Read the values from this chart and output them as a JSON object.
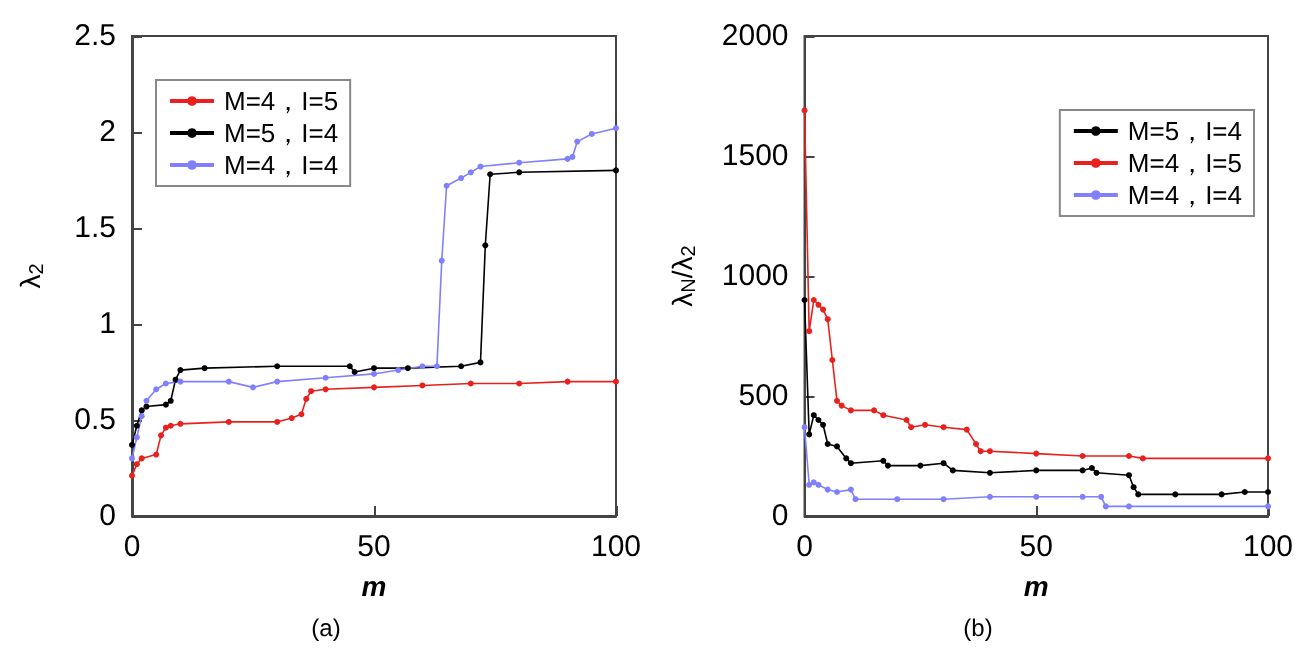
{
  "chart_data": [
    {
      "type": "line",
      "xlabel": "m",
      "ylabel": "λ$_{2}$",
      "annotations": [
        "(a)"
      ],
      "xlim": [
        0,
        100
      ],
      "xticks": [
        0,
        50,
        100
      ],
      "ylim": [
        0,
        2.5
      ],
      "yticks": [
        0,
        0.5,
        1,
        1.5,
        2,
        2.5
      ],
      "grid": false,
      "legend": "top left",
      "marker": "circle",
      "line_style": "solid",
      "series": [
        {
          "name": "M=4，I=5",
          "color": "#e8201e",
          "x": [
            0,
            1,
            2,
            5,
            6,
            7,
            8,
            10,
            20,
            30,
            33,
            35,
            36,
            37,
            40,
            50,
            60,
            70,
            80,
            90,
            100
          ],
          "values": [
            0.21,
            0.27,
            0.3,
            0.32,
            0.42,
            0.46,
            0.47,
            0.48,
            0.49,
            0.49,
            0.51,
            0.53,
            0.61,
            0.65,
            0.66,
            0.67,
            0.68,
            0.69,
            0.69,
            0.7,
            0.7
          ]
        },
        {
          "name": "M=5，I=4",
          "color": "#000000",
          "x": [
            0,
            1,
            2,
            3,
            7,
            8,
            9,
            10,
            15,
            30,
            45,
            46,
            50,
            57,
            68,
            72,
            73,
            74,
            80,
            100
          ],
          "values": [
            0.37,
            0.47,
            0.55,
            0.57,
            0.58,
            0.6,
            0.71,
            0.76,
            0.77,
            0.78,
            0.78,
            0.75,
            0.77,
            0.77,
            0.78,
            0.8,
            1.41,
            1.78,
            1.79,
            1.8
          ]
        },
        {
          "name": "M=4，I=4",
          "color": "#8080ff",
          "x": [
            0,
            1,
            2,
            3,
            5,
            7,
            10,
            20,
            25,
            30,
            40,
            50,
            55,
            60,
            63,
            64,
            65,
            68,
            70,
            72,
            80,
            90,
            91,
            92,
            95,
            100
          ],
          "values": [
            0.3,
            0.41,
            0.52,
            0.6,
            0.66,
            0.69,
            0.7,
            0.7,
            0.67,
            0.7,
            0.72,
            0.74,
            0.76,
            0.78,
            0.78,
            1.33,
            1.72,
            1.76,
            1.79,
            1.82,
            1.84,
            1.86,
            1.87,
            1.95,
            1.99,
            2.02
          ]
        }
      ]
    },
    {
      "type": "line",
      "xlabel": "m",
      "ylabel": "λ$_{N}$/λ$_{2}$",
      "annotations": [
        "(b)"
      ],
      "xlim": [
        0,
        100
      ],
      "xticks": [
        0,
        50,
        100
      ],
      "ylim": [
        0,
        2000
      ],
      "yticks": [
        0,
        500,
        1000,
        1500,
        2000
      ],
      "grid": false,
      "legend": "top right",
      "marker": "circle",
      "line_style": "solid",
      "series": [
        {
          "name": "M=5，I=4",
          "color": "#000000",
          "x": [
            0,
            1,
            2,
            3,
            4,
            5,
            7,
            9,
            10,
            17,
            18,
            25,
            30,
            32,
            40,
            50,
            60,
            62,
            63,
            70,
            71,
            72,
            80,
            90,
            95,
            100
          ],
          "values": [
            900,
            340,
            420,
            400,
            380,
            300,
            290,
            240,
            220,
            230,
            210,
            210,
            220,
            190,
            180,
            190,
            190,
            200,
            180,
            170,
            120,
            90,
            90,
            90,
            100,
            100
          ]
        },
        {
          "name": "M=4，I=5",
          "color": "#e8201e",
          "x": [
            0,
            1,
            2,
            3,
            4,
            5,
            6,
            7,
            8,
            10,
            15,
            17,
            22,
            23,
            26,
            30,
            35,
            37,
            38,
            40,
            50,
            60,
            70,
            73,
            100
          ],
          "values": [
            1690,
            770,
            900,
            880,
            860,
            820,
            650,
            480,
            460,
            440,
            440,
            420,
            400,
            370,
            380,
            370,
            360,
            300,
            270,
            270,
            260,
            250,
            250,
            240,
            240
          ]
        },
        {
          "name": "M=4，I=4",
          "color": "#8080ff",
          "x": [
            0,
            1,
            2,
            3,
            5,
            7,
            10,
            11,
            20,
            30,
            40,
            50,
            60,
            64,
            65,
            70,
            100
          ],
          "values": [
            370,
            130,
            140,
            130,
            110,
            100,
            110,
            70,
            70,
            70,
            80,
            80,
            80,
            80,
            40,
            40,
            40
          ]
        }
      ]
    }
  ]
}
